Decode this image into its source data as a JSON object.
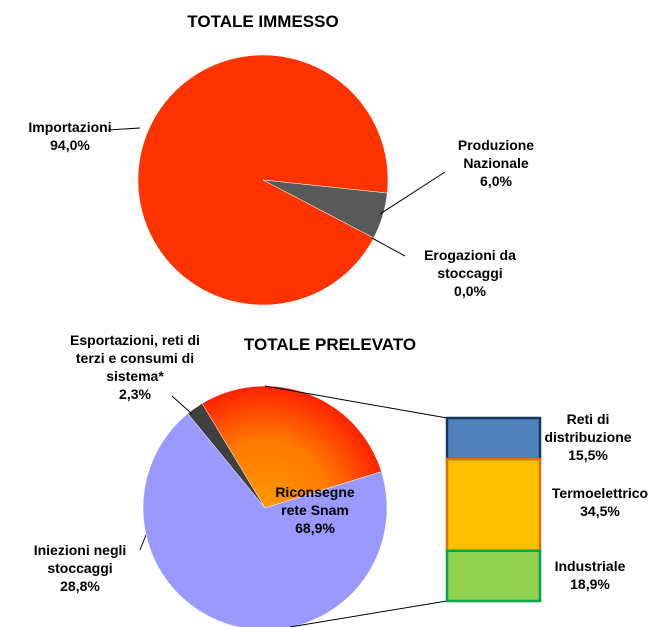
{
  "chart_data": [
    {
      "type": "pie",
      "title": "TOTALE IMMESSO",
      "categories": [
        "Importazioni",
        "Produzione Nazionale",
        "Erogazioni da stoccaggi"
      ],
      "values": [
        94.0,
        6.0,
        0.0
      ],
      "value_labels": [
        "94,0%",
        "6,0%",
        "0,0%"
      ],
      "colors": [
        "#ff3300",
        "#595959",
        "#7f7f7f"
      ]
    },
    {
      "type": "pie",
      "title": "TOTALE PRELEVATO",
      "categories": [
        "Esportazioni, reti di terzi e consumi di sistema*",
        "Iniezioni negli stoccaggi",
        "Riconsegne rete Snam"
      ],
      "values": [
        2.3,
        28.8,
        68.9
      ],
      "value_labels": [
        "2,3%",
        "28,8%",
        "68,9%"
      ],
      "colors": [
        "#404040",
        "#ff3300",
        "#9999ff"
      ],
      "detail": {
        "type": "bar",
        "categories": [
          "Reti di distribuzione",
          "Termoelettrico",
          "Industriale"
        ],
        "values": [
          15.5,
          34.5,
          18.9
        ],
        "value_labels": [
          "15,5%",
          "34,5%",
          "18,9%"
        ],
        "colors": [
          "#4f81bd",
          "#ffc000",
          "#92d050"
        ]
      }
    }
  ]
}
